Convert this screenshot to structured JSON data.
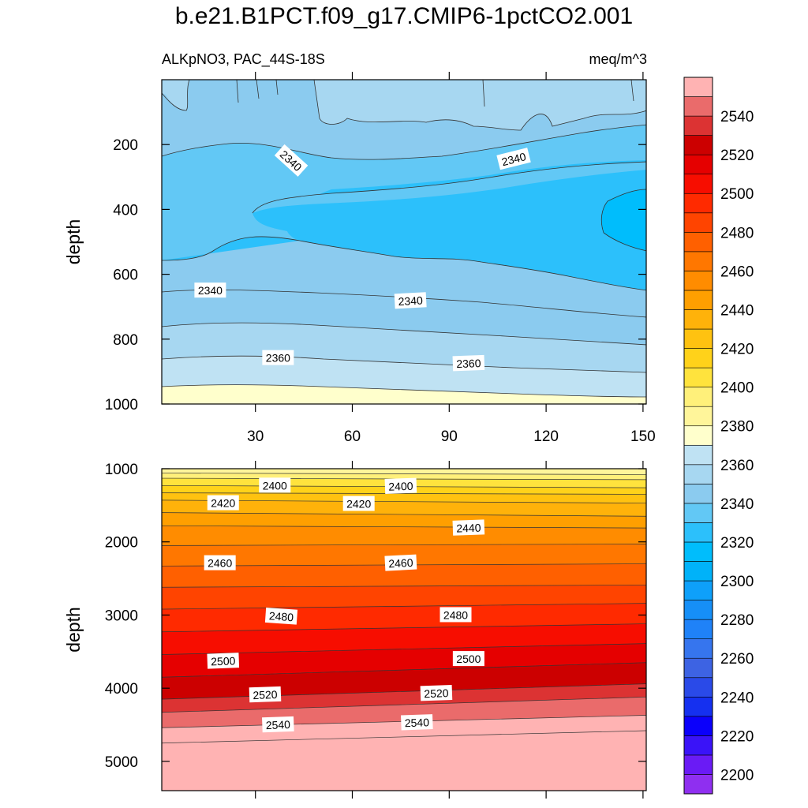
{
  "title": "b.e21.B1PCT.f09_g17.CMIP6-1pctCO2.001",
  "chart_data": {
    "type": "contour",
    "variable": "ALKpNO3, PAC_44S-18S",
    "units": "meq/m^3",
    "x_axis": {
      "range": [
        1,
        151
      ],
      "ticks": [
        30,
        60,
        90,
        120,
        150
      ],
      "tick_labels": [
        "30",
        "60",
        "90",
        "120",
        "150"
      ]
    },
    "colorbar": {
      "levels": [
        2200,
        2210,
        2220,
        2230,
        2240,
        2250,
        2260,
        2270,
        2280,
        2290,
        2300,
        2310,
        2320,
        2330,
        2340,
        2350,
        2360,
        2370,
        2380,
        2390,
        2400,
        2410,
        2420,
        2430,
        2440,
        2450,
        2460,
        2470,
        2480,
        2490,
        2500,
        2510,
        2520,
        2530,
        2540,
        2550
      ],
      "labels": [
        "2200",
        "2220",
        "2240",
        "2260",
        "2280",
        "2300",
        "2320",
        "2340",
        "2360",
        "2380",
        "2400",
        "2420",
        "2440",
        "2460",
        "2480",
        "2500",
        "2520",
        "2540"
      ],
      "colors": [
        "#8f2ff0",
        "#6a1bf5",
        "#3a13f8",
        "#0b00fb",
        "#1530f0",
        "#2a4ae8",
        "#3d63e3",
        "#3675ee",
        "#1f82f8",
        "#168ff7",
        "#0ea0fa",
        "#00b2f9",
        "#00bdfc",
        "#2cc0fb",
        "#62c8f5",
        "#8bcbef",
        "#a7d7f1",
        "#bfe2f3",
        "#ffffcc",
        "#fff59a",
        "#fff07a",
        "#ffe33d",
        "#ffd21a",
        "#ffc210",
        "#ffb20a",
        "#ff9f00",
        "#ff8c00",
        "#ff7700",
        "#ff6000",
        "#ff4400",
        "#ff2a00",
        "#f70d00",
        "#e50000",
        "#cc0000",
        "#dc3333",
        "#ea6b6b",
        "#ffb3b3"
      ]
    },
    "panels": [
      {
        "name": "upper",
        "y_label": "depth",
        "y_range": [
          0,
          1000
        ],
        "y_ticks": [
          200,
          400,
          600,
          800,
          1000
        ],
        "y_tick_labels": [
          "200",
          "400",
          "600",
          "800",
          "1000"
        ],
        "subtitle_left": "ALKpNO3, PAC_44S-18S",
        "subtitle_right": "meq/m^3",
        "contour_labels": [
          {
            "text": "2340",
            "x": 41,
            "y": 250,
            "rotate": 42
          },
          {
            "text": "2340",
            "x": 110,
            "y": 245,
            "rotate": -14
          },
          {
            "text": "2340",
            "x": 16,
            "y": 650,
            "rotate": 0
          },
          {
            "text": "2340",
            "x": 78,
            "y": 682,
            "rotate": -3
          },
          {
            "text": "2360",
            "x": 37,
            "y": 858,
            "rotate": 0
          },
          {
            "text": "2360",
            "x": 96,
            "y": 875,
            "rotate": -2
          }
        ]
      },
      {
        "name": "lower",
        "y_label": "depth",
        "y_range": [
          1000,
          5400
        ],
        "y_ticks": [
          1000,
          2000,
          3000,
          4000,
          5000
        ],
        "y_tick_labels": [
          "1000",
          "2000",
          "3000",
          "4000",
          "5000"
        ],
        "contour_labels": [
          {
            "text": "2400",
            "x": 36,
            "y": 1230,
            "rotate": 0
          },
          {
            "text": "2400",
            "x": 75,
            "y": 1240,
            "rotate": -2
          },
          {
            "text": "2420",
            "x": 20,
            "y": 1470,
            "rotate": 0
          },
          {
            "text": "2420",
            "x": 62,
            "y": 1480,
            "rotate": 0
          },
          {
            "text": "2440",
            "x": 96,
            "y": 1810,
            "rotate": -2
          },
          {
            "text": "2460",
            "x": 19,
            "y": 2290,
            "rotate": 0
          },
          {
            "text": "2460",
            "x": 75,
            "y": 2290,
            "rotate": -3
          },
          {
            "text": "2480",
            "x": 38,
            "y": 3020,
            "rotate": 4
          },
          {
            "text": "2480",
            "x": 92,
            "y": 3000,
            "rotate": 0
          },
          {
            "text": "2500",
            "x": 20,
            "y": 3630,
            "rotate": -2
          },
          {
            "text": "2500",
            "x": 96,
            "y": 3600,
            "rotate": 0
          },
          {
            "text": "2520",
            "x": 33,
            "y": 4090,
            "rotate": -2
          },
          {
            "text": "2520",
            "x": 86,
            "y": 4070,
            "rotate": -2
          },
          {
            "text": "2540",
            "x": 37,
            "y": 4500,
            "rotate": -2
          },
          {
            "text": "2540",
            "x": 80,
            "y": 4470,
            "rotate": -2
          }
        ]
      }
    ]
  }
}
